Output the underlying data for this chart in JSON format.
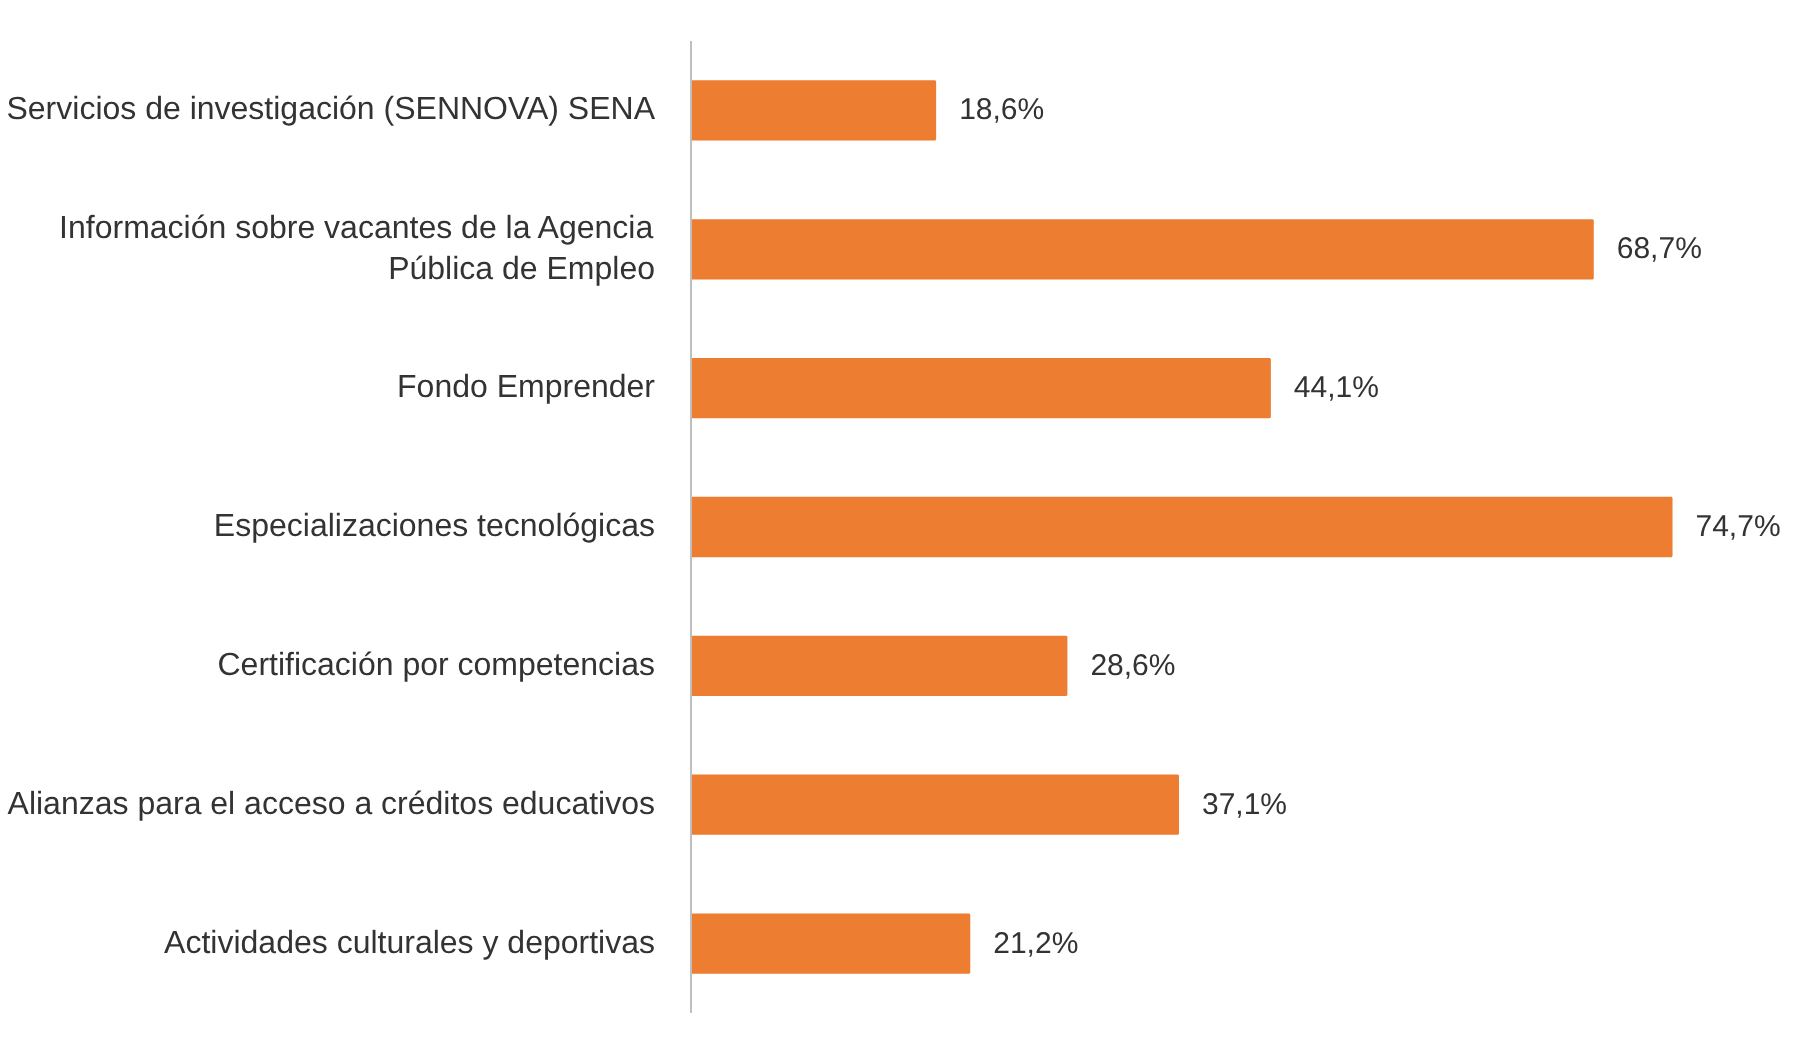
{
  "chart_data": {
    "type": "bar",
    "orientation": "horizontal",
    "categories": [
      "Servicios de investigación (SENNOVA) SENA",
      "Información sobre vacantes de la Agencia\nPública de Empleo",
      "Fondo Emprender",
      "Especializaciones tecnológicas",
      "Certificación por competencias",
      "Alianzas para el acceso a créditos educativos",
      "Actividades culturales y deportivas"
    ],
    "values": [
      18.6,
      68.7,
      44.1,
      74.7,
      28.6,
      37.1,
      21.2
    ],
    "value_labels": [
      "18,6%",
      "68,7%",
      "44,1%",
      "74,7%",
      "28,6%",
      "37,1%",
      "21,2%"
    ],
    "color": "#ed7d31"
  }
}
